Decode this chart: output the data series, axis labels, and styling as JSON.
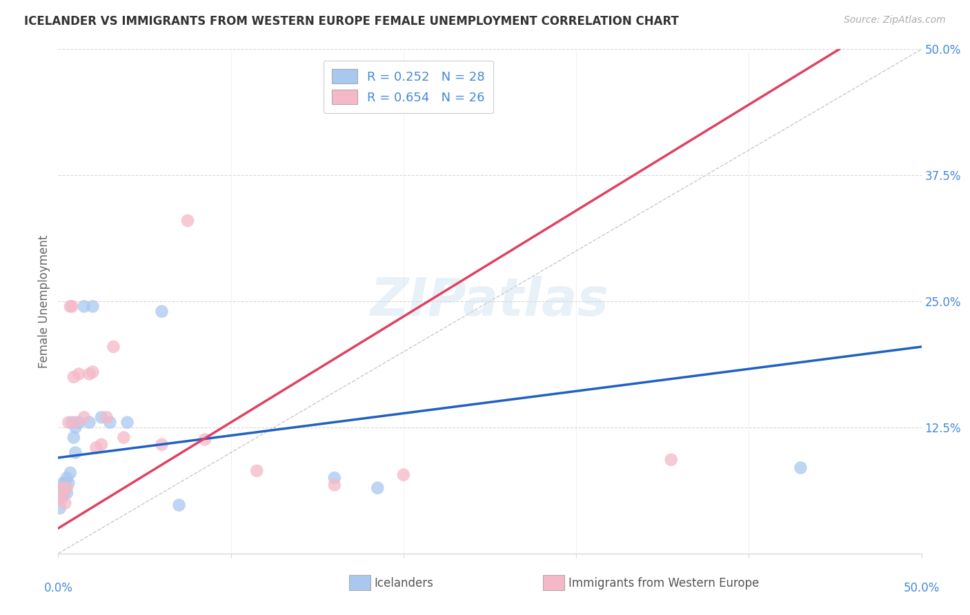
{
  "title": "ICELANDER VS IMMIGRANTS FROM WESTERN EUROPE FEMALE UNEMPLOYMENT CORRELATION CHART",
  "source": "Source: ZipAtlas.com",
  "ylabel": "Female Unemployment",
  "ylim": [
    0.0,
    0.5
  ],
  "xlim": [
    0.0,
    0.5
  ],
  "ytick_values": [
    0.0,
    0.125,
    0.25,
    0.375,
    0.5
  ],
  "ytick_labels": [
    "",
    "12.5%",
    "25.0%",
    "37.5%",
    "50.0%"
  ],
  "blue_color": "#a8c8f0",
  "pink_color": "#f5b8c8",
  "blue_line_color": "#2060c0",
  "pink_line_color": "#e04060",
  "diag_line_color": "#c8c8c8",
  "grid_color": "#d8d8d8",
  "tick_label_color": "#4488dd",
  "watermark": "ZIPatlas",
  "watermark_zip_color": "#d0e4f5",
  "watermark_atlas_color": "#c0d8ee",
  "blue_slope": 0.22,
  "blue_intercept": 0.095,
  "pink_slope": 1.05,
  "pink_intercept": 0.025,
  "icelanders_x": [
    0.001,
    0.002,
    0.002,
    0.003,
    0.003,
    0.003,
    0.004,
    0.004,
    0.005,
    0.005,
    0.006,
    0.007,
    0.008,
    0.009,
    0.01,
    0.01,
    0.012,
    0.015,
    0.018,
    0.02,
    0.025,
    0.03,
    0.04,
    0.06,
    0.07,
    0.16,
    0.185,
    0.43
  ],
  "icelanders_y": [
    0.045,
    0.055,
    0.06,
    0.06,
    0.065,
    0.07,
    0.065,
    0.07,
    0.06,
    0.075,
    0.07,
    0.08,
    0.13,
    0.115,
    0.125,
    0.1,
    0.13,
    0.245,
    0.13,
    0.245,
    0.135,
    0.13,
    0.13,
    0.24,
    0.048,
    0.075,
    0.065,
    0.085
  ],
  "western_x": [
    0.001,
    0.002,
    0.003,
    0.004,
    0.005,
    0.006,
    0.007,
    0.008,
    0.009,
    0.01,
    0.012,
    0.015,
    0.018,
    0.02,
    0.022,
    0.025,
    0.028,
    0.032,
    0.038,
    0.06,
    0.075,
    0.085,
    0.115,
    0.16,
    0.2,
    0.355
  ],
  "western_y": [
    0.055,
    0.06,
    0.065,
    0.05,
    0.065,
    0.13,
    0.245,
    0.245,
    0.175,
    0.13,
    0.178,
    0.135,
    0.178,
    0.18,
    0.105,
    0.108,
    0.135,
    0.205,
    0.115,
    0.108,
    0.33,
    0.113,
    0.082,
    0.068,
    0.078,
    0.093
  ],
  "legend_label1": "R = 0.252   N = 28",
  "legend_label2": "R = 0.654   N = 26",
  "bottom_legend1": "Icelanders",
  "bottom_legend2": "Immigrants from Western Europe"
}
